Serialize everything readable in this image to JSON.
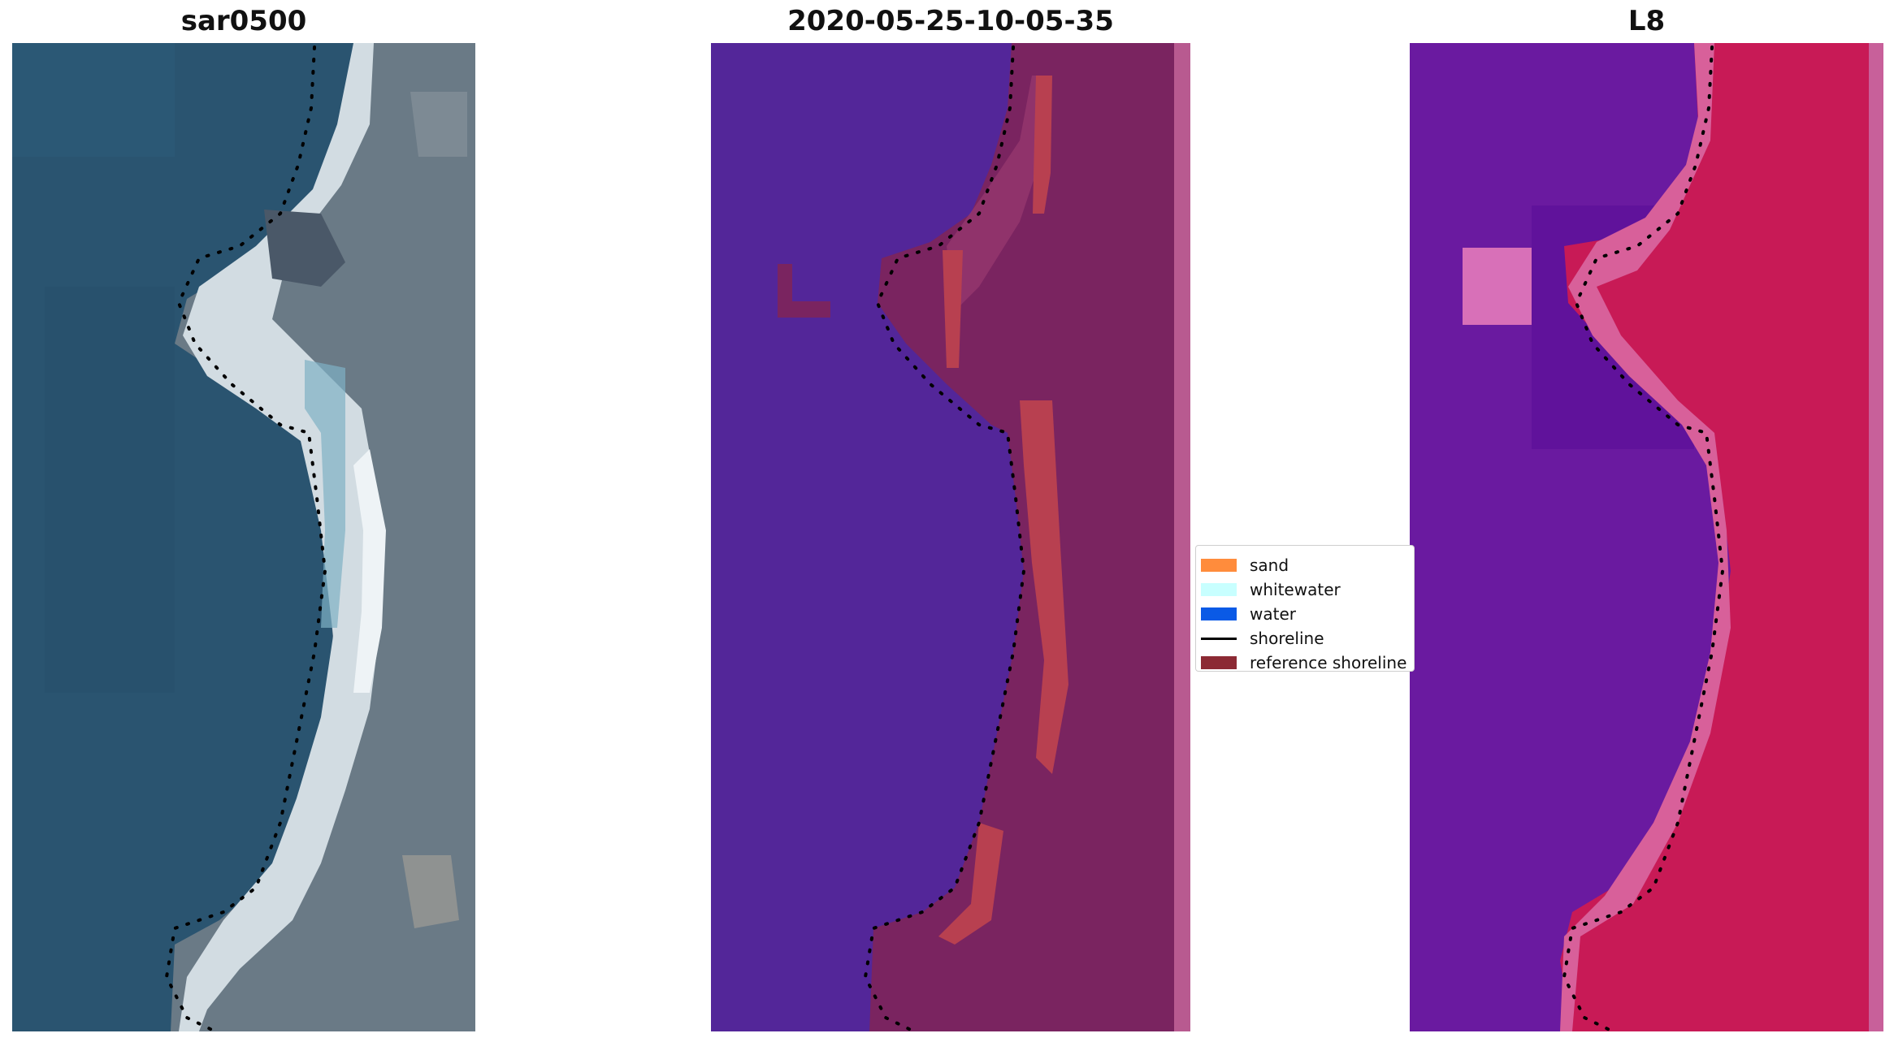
{
  "panels": {
    "rgb": {
      "title": "sar0500"
    },
    "classified": {
      "title": "2020-05-25-10-05-35"
    },
    "index": {
      "title": "L8"
    }
  },
  "legend": {
    "items": [
      {
        "label": "sand",
        "color": "#ff8c3c",
        "kind": "patch"
      },
      {
        "label": "whitewater",
        "color": "#c8ffff",
        "kind": "patch"
      },
      {
        "label": "water",
        "color": "#0a5ae6",
        "kind": "patch"
      },
      {
        "label": "shoreline",
        "color": "#000000",
        "kind": "line"
      },
      {
        "label": "reference shoreline",
        "color": "#8c2a34",
        "kind": "patch"
      }
    ]
  },
  "colors": {
    "water_rgb": "#2a5470",
    "sand_rgb": "#d2dce2",
    "land_rgb": "#6a7a86",
    "water_class": "#532699",
    "land_class": "#7a2460",
    "sand_class": "#b84050",
    "water_index": "#6a1aa0",
    "land_index": "#c81a56",
    "shoreline_dots": "#000000"
  }
}
